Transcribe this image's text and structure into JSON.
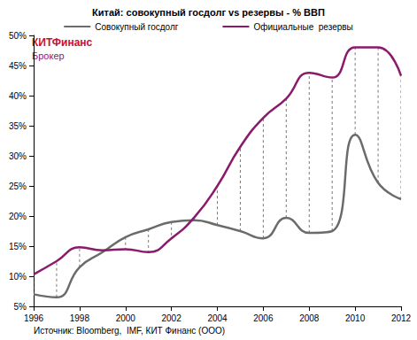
{
  "chart_data": {
    "type": "line",
    "title": "Китай: совокупный госдолг vs резервы - % ВВП",
    "logo": [
      "КИТФинанс",
      "Брокер"
    ],
    "source": "Источник: Bloomberg,  IMF, КИТ Финанс (ООО)",
    "x": [
      1996,
      1997,
      1998,
      1999,
      2000,
      2001,
      2002,
      2003,
      2004,
      2005,
      2006,
      2007,
      2008,
      2009,
      2010,
      2011,
      2012
    ],
    "series": [
      {
        "name": "Совокупный госдолг",
        "color": "#6b6b6b",
        "values": [
          7,
          6.5,
          11.5,
          14,
          16.5,
          17.8,
          19,
          19.3,
          18.5,
          17.5,
          16.3,
          19.7,
          17.2,
          17.5,
          33.5,
          25.5,
          22.8
        ]
      },
      {
        "name": "Официальные  резервы",
        "color": "#8b1a6b",
        "values": [
          10.3,
          12.5,
          14.8,
          14.3,
          14.5,
          14,
          16.3,
          19.8,
          25,
          31.5,
          36.3,
          39.5,
          43.8,
          43,
          48,
          48,
          43.3
        ]
      }
    ],
    "xlim": [
      1996,
      2012
    ],
    "xticks": [
      1996,
      1998,
      2000,
      2002,
      2004,
      2006,
      2008,
      2010,
      2012
    ],
    "ylim": [
      5,
      50
    ],
    "yticks": [
      {
        "value": 5,
        "label": "5%"
      },
      {
        "value": 10,
        "label": "10%"
      },
      {
        "value": 15,
        "label": "15%"
      },
      {
        "value": 20,
        "label": "20%"
      },
      {
        "value": 25,
        "label": "25%"
      },
      {
        "value": 30,
        "label": "30%"
      },
      {
        "value": 35,
        "label": "35%"
      },
      {
        "value": 40,
        "label": "40%"
      },
      {
        "value": 45,
        "label": "45%"
      },
      {
        "value": 50,
        "label": "50%"
      }
    ],
    "grid": false,
    "legend": "top"
  }
}
